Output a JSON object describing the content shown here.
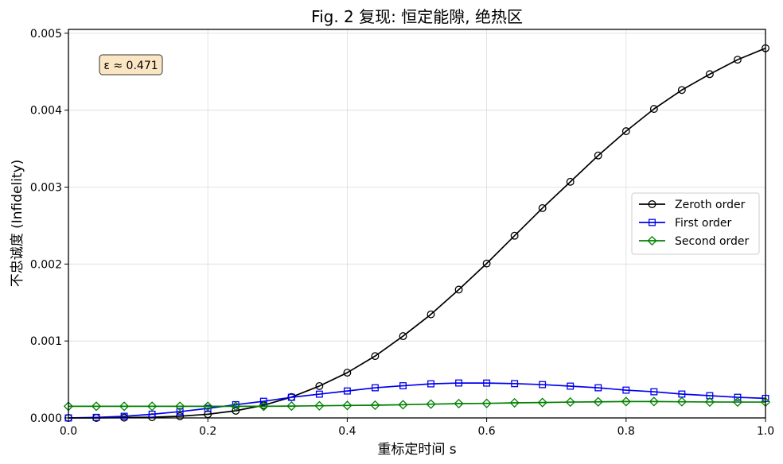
{
  "chart_data": {
    "type": "line",
    "title": "Fig. 2 复现: 恒定能隙, 绝热区",
    "xlabel": "重标定时间 s",
    "ylabel": "不忠诚度 (Infidelity)",
    "xlim": [
      0,
      1
    ],
    "ylim": [
      0,
      0.00505
    ],
    "xticks": [
      0.0,
      0.2,
      0.4,
      0.6,
      0.8,
      1.0
    ],
    "xtick_labels": [
      "0.0",
      "0.2",
      "0.4",
      "0.6",
      "0.8",
      "1.0"
    ],
    "yticks": [
      0,
      0.001,
      0.002,
      0.003,
      0.004,
      0.005
    ],
    "ytick_labels": [
      "0.000",
      "0.001",
      "0.002",
      "0.003",
      "0.004",
      "0.005"
    ],
    "grid": true,
    "legend_position": "center-right",
    "annotation": "ε ≈ 0.471",
    "x": [
      0.0,
      0.04,
      0.08,
      0.12,
      0.16,
      0.2,
      0.24,
      0.28,
      0.32,
      0.36,
      0.4,
      0.44,
      0.48,
      0.52,
      0.56,
      0.6,
      0.64,
      0.68,
      0.72,
      0.76,
      0.8,
      0.84,
      0.88,
      0.92,
      0.96,
      1.0
    ],
    "series": [
      {
        "name": "Zeroth order",
        "color": "#000000",
        "marker": "circle",
        "values": [
          0.0,
          0.0,
          4e-06,
          9e-06,
          2.2e-05,
          4.8e-05,
          9.3e-05,
          0.000165,
          0.000271,
          0.000414,
          0.000588,
          0.000804,
          0.001063,
          0.001346,
          0.001668,
          0.002007,
          0.002368,
          0.002727,
          0.003069,
          0.003411,
          0.003727,
          0.004016,
          0.004262,
          0.004468,
          0.004656,
          0.004805
        ]
      },
      {
        "name": "First order",
        "color": "#0000ee",
        "marker": "square",
        "values": [
          0.0,
          7e-06,
          2.1e-05,
          4.8e-05,
          8.2e-05,
          0.000124,
          0.000172,
          0.000216,
          0.000268,
          0.000309,
          0.00035,
          0.000392,
          0.000418,
          0.000443,
          0.000454,
          0.000453,
          0.000446,
          0.000433,
          0.000413,
          0.000392,
          0.000361,
          0.00034,
          0.00031,
          0.000289,
          0.000268,
          0.000254
        ]
      },
      {
        "name": "Second order",
        "color": "#008000",
        "marker": "diamond",
        "values": [
          0.000151,
          0.000151,
          0.000151,
          0.000151,
          0.000151,
          0.000151,
          0.000151,
          0.000151,
          0.000154,
          0.000158,
          0.000162,
          0.000165,
          0.000172,
          0.000179,
          0.000186,
          0.000189,
          0.000196,
          0.0002,
          0.000206,
          0.000209,
          0.000213,
          0.000213,
          0.00021,
          0.000207,
          0.000206,
          0.000206
        ]
      }
    ]
  }
}
